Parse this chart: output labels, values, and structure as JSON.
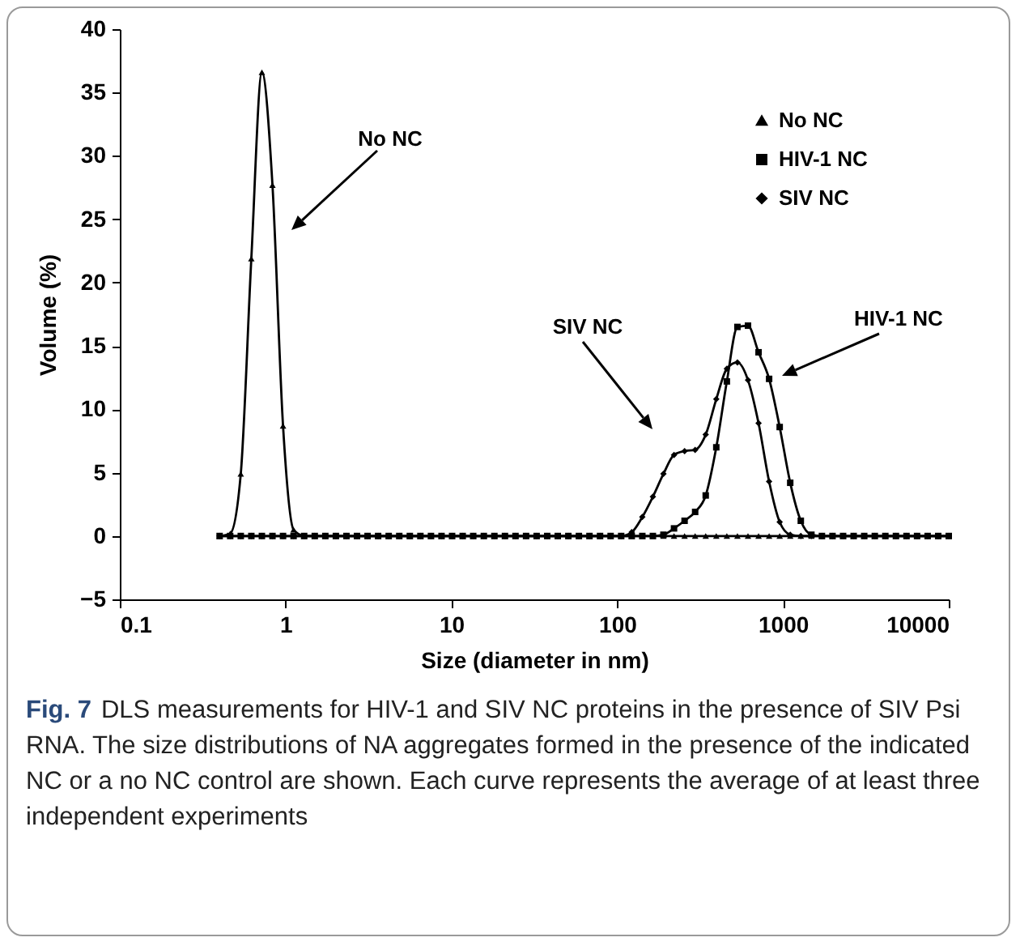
{
  "chart_data": {
    "type": "line",
    "xlabel": "Size (diameter in nm)",
    "ylabel": "Volume  (%)",
    "log": "x",
    "legend": "top right",
    "x": [
      0.4,
      0.4632,
      0.5365,
      0.6213,
      0.7195,
      0.8332,
      0.9649,
      1.117,
      1.294,
      1.499,
      1.736,
      2.01,
      2.328,
      2.696,
      3.122,
      3.615,
      4.187,
      4.849,
      5.615,
      6.503,
      7.531,
      8.721,
      10.1,
      11.7,
      13.54,
      15.69,
      18.17,
      21.04,
      24.36,
      28.21,
      32.67,
      37.84,
      43.82,
      50.75,
      58.77,
      68.06,
      78.82,
      91.28,
      105.7,
      122.4,
      141.8,
      164.2,
      190.1,
      220.2,
      255,
      295.3,
      342,
      396.1,
      458.7,
      531.2,
      615.1,
      712.4,
      825,
      955.4,
      1106,
      1281,
      1484,
      1718,
      1990,
      2305,
      2669,
      3091,
      3580,
      4145,
      4801,
      5560,
      6439,
      7456,
      8635,
      10000
    ],
    "xlim": [
      0.1,
      10000
    ],
    "xticks": [
      0.1,
      1,
      10,
      100,
      1000,
      10000
    ],
    "ylim": [
      -5,
      40
    ],
    "yticks": [
      -5,
      0,
      5,
      10,
      15,
      20,
      25,
      30,
      35,
      40
    ],
    "series": [
      {
        "name": "No NC",
        "color": "#000000",
        "marker": "triangle",
        "values": [
          0,
          0.2,
          4.9,
          21.9,
          36.6,
          27.7,
          8.7,
          0.5,
          0,
          0,
          0,
          0,
          0,
          0,
          0,
          0,
          0,
          0,
          0,
          0,
          0,
          0,
          0,
          0,
          0,
          0,
          0,
          0,
          0,
          0,
          0,
          0,
          0,
          0,
          0,
          0,
          0,
          0,
          0,
          0,
          0,
          0,
          0,
          0,
          0,
          0,
          0,
          0,
          0,
          0,
          0,
          0,
          0,
          0,
          0,
          0,
          0,
          0,
          0,
          0,
          0,
          0,
          0,
          0,
          0,
          0,
          0,
          0,
          0,
          0
        ]
      },
      {
        "name": "HIV-1 NC",
        "color": "#000000",
        "marker": "square",
        "values": [
          0,
          0,
          0,
          0,
          0,
          0,
          0,
          0,
          0,
          0,
          0,
          0,
          0,
          0,
          0,
          0,
          0,
          0,
          0,
          0,
          0,
          0,
          0,
          0,
          0,
          0,
          0,
          0,
          0,
          0,
          0,
          0,
          0,
          0,
          0,
          0,
          0,
          0,
          0,
          0,
          0,
          0,
          0.1,
          0.6,
          1.2,
          1.9,
          3.2,
          7.0,
          12.2,
          16.5,
          16.6,
          14.5,
          12.4,
          8.6,
          4.2,
          1.2,
          0.1,
          0,
          0,
          0,
          0,
          0,
          0,
          0,
          0,
          0,
          0,
          0,
          0,
          0
        ]
      },
      {
        "name": "SIV NC",
        "color": "#000000",
        "marker": "diamond",
        "values": [
          0,
          0,
          0,
          0,
          0,
          0,
          0,
          0,
          0,
          0,
          0,
          0,
          0,
          0,
          0,
          0,
          0,
          0,
          0,
          0,
          0,
          0,
          0,
          0,
          0,
          0,
          0,
          0,
          0,
          0,
          0,
          0,
          0,
          0,
          0,
          0,
          0,
          0,
          0,
          0.3,
          1.5,
          3.1,
          4.9,
          6.4,
          6.7,
          6.8,
          8.0,
          10.8,
          13.2,
          13.7,
          12.3,
          8.9,
          4.3,
          1.1,
          0.1,
          0,
          0,
          0,
          0,
          0,
          0,
          0,
          0,
          0,
          0,
          0,
          0,
          0,
          0,
          0
        ]
      }
    ],
    "annotations": [
      "No NC",
      "SIV NC",
      "HIV-1 NC",
      "Fig. 7 DLS measurements for HIV-1 and SIV NC proteins in the presence of SIV Psi RNA. The size distributions of NA aggregates formed in the presence of the indicated NC or a no NC control are shown. Each curve represents the average of at least three independent experiments"
    ]
  }
}
